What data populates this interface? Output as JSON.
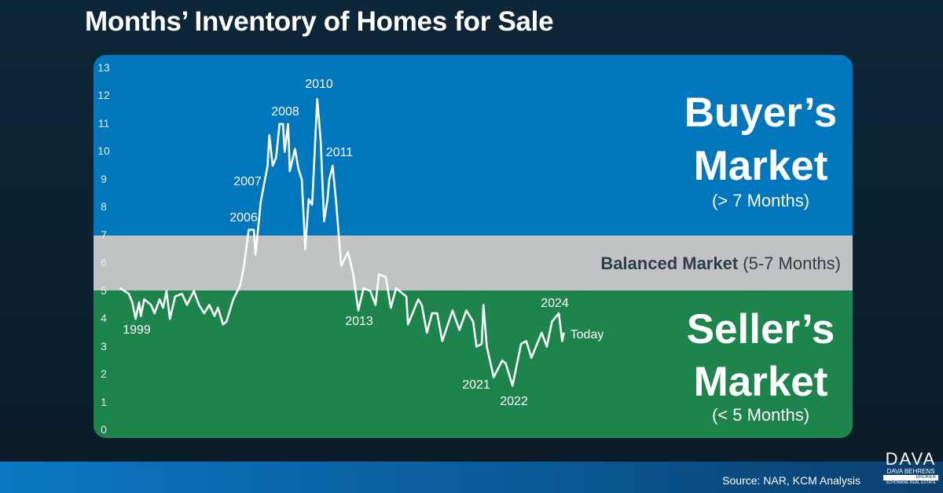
{
  "title": "Months’ Inventory of Homes for Sale",
  "colors": {
    "buyers": "#0077bd",
    "balanced": "#c0c3c4",
    "sellers": "#1d844c",
    "line": "#ffffff"
  },
  "zones": {
    "buyers_title_1": "Buyer’s",
    "buyers_title_2": "Market",
    "buyers_sub": "(> 7 Months)",
    "balanced_bold": "Balanced Market",
    "balanced_rest": " (5-7 Months)",
    "sellers_title_1": "Seller’s",
    "sellers_title_2": "Market",
    "sellers_sub": "(< 5 Months)"
  },
  "source": "Source: NAR, KCM Analysis",
  "logo": {
    "name": "DAVA",
    "line2": "DAVA BEHRENS",
    "line3": "BROKER",
    "line4": "SCHOWANE REAL ESTATE"
  },
  "chart_data": {
    "type": "line",
    "title": "Months’ Inventory of Homes for Sale",
    "ylim": [
      0,
      13
    ],
    "yticks": [
      "0",
      "1",
      "2",
      "3",
      "4",
      "5",
      "6",
      "7",
      "8",
      "9",
      "10",
      "11",
      "12",
      "13"
    ],
    "bands": [
      {
        "name": "Seller’s Market",
        "from": 0,
        "to": 5
      },
      {
        "name": "Balanced Market",
        "from": 5,
        "to": 7
      },
      {
        "name": "Buyer’s Market",
        "from": 7,
        "to": 13
      }
    ],
    "annotations": [
      "1999",
      "2006",
      "2007",
      "2008",
      "2010",
      "2011",
      "2013",
      "2021",
      "2022",
      "2024",
      "Today"
    ],
    "x": [
      1999.0,
      1999.5,
      1999.7,
      1999.9,
      2000.1,
      2000.2,
      2000.4,
      2000.8,
      2001.0,
      2001.3,
      2001.5,
      2001.7,
      2001.9,
      2002.2,
      2002.6,
      2002.9,
      2003.3,
      2003.6,
      2003.9,
      2004.2,
      2004.5,
      2004.7,
      2005.0,
      2005.2,
      2005.6,
      2006.0,
      2006.2,
      2006.5,
      2006.8,
      2006.9,
      2007.2,
      2007.6,
      2007.7,
      2007.9,
      2008.1,
      2008.3,
      2008.5,
      2008.6,
      2008.8,
      2008.9,
      2009.2,
      2009.4,
      2009.6,
      2009.8,
      2010.0,
      2010.2,
      2010.5,
      2010.7,
      2010.9,
      2011.1,
      2011.2,
      2011.4,
      2011.6,
      2011.9,
      2012.3,
      2012.6,
      2012.9,
      2013.2,
      2013.6,
      2013.9,
      2014.1,
      2014.5,
      2014.8,
      2015.1,
      2015.7,
      2015.8,
      2016.4,
      2016.6,
      2016.9,
      2017.2,
      2017.5,
      2017.8,
      2018.4,
      2018.8,
      2019.2,
      2019.6,
      2019.8,
      2020.1,
      2020.2,
      2020.4,
      2020.8,
      2021.3,
      2021.5,
      2021.9,
      2022.4,
      2022.7,
      2023.0,
      2023.4,
      2023.6,
      2023.9,
      2024.2,
      2024.6,
      2024.8,
      2024.9
    ],
    "values": [
      5.1,
      4.9,
      4.6,
      4.0,
      4.6,
      4.1,
      4.7,
      4.5,
      4.2,
      4.7,
      4.4,
      5.0,
      4.0,
      4.8,
      4.9,
      4.5,
      5.0,
      4.5,
      4.2,
      4.5,
      4.1,
      4.4,
      3.8,
      3.9,
      4.7,
      5.2,
      5.8,
      7.2,
      7.2,
      6.3,
      8.2,
      9.5,
      10.6,
      9.5,
      9.8,
      11.0,
      11.0,
      10.0,
      11.0,
      9.3,
      10.1,
      9.4,
      9.0,
      6.5,
      8.3,
      8.1,
      11.9,
      10.4,
      7.5,
      8.3,
      9.0,
      9.5,
      8.2,
      5.9,
      6.4,
      5.6,
      4.3,
      5.1,
      5.0,
      4.5,
      5.6,
      5.5,
      4.4,
      5.1,
      4.8,
      3.8,
      4.7,
      4.5,
      3.5,
      4.2,
      4.2,
      3.2,
      4.3,
      3.6,
      4.3,
      3.9,
      3.0,
      3.1,
      4.5,
      3.0,
      1.9,
      2.5,
      2.4,
      1.6,
      3.1,
      3.2,
      2.6,
      3.2,
      3.5,
      3.0,
      3.9,
      4.2,
      3.2,
      3.5
    ]
  }
}
